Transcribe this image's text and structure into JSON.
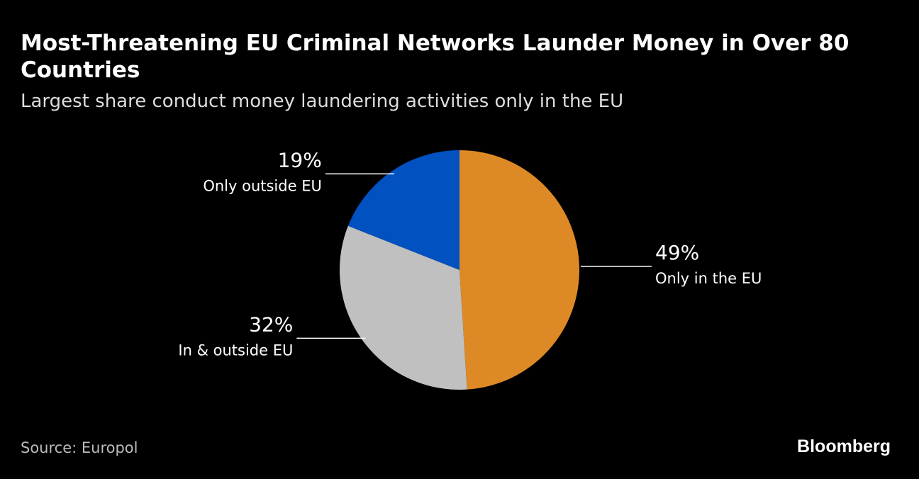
{
  "chart_data": {
    "type": "pie",
    "title": "Most-Threatening EU Criminal Networks Launder Money in Over 80 Countries",
    "subtitle": "Largest share conduct money laundering activities only in the EU",
    "categories": [
      "Only in the EU",
      "In & outside EU",
      "Only outside EU"
    ],
    "values": [
      49,
      32,
      19
    ],
    "value_labels": [
      "49%",
      "32%",
      "19%"
    ],
    "colors": [
      "#dd8a26",
      "#c0c0c0",
      "#0151c1"
    ],
    "source": "Source: Europol",
    "brand": "Bloomberg"
  }
}
